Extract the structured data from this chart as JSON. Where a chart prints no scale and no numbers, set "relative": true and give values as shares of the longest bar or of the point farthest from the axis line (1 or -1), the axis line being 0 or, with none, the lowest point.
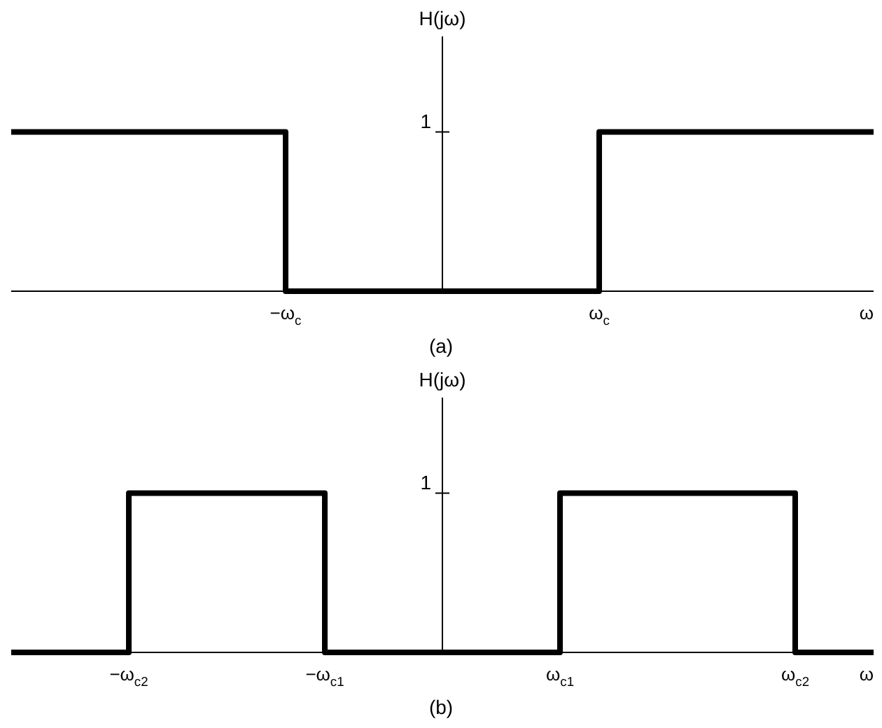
{
  "chart_data": [
    {
      "type": "step",
      "relative": true,
      "ylabel": "H(jω)",
      "xlabel": "ω",
      "annotations": [
        "1",
        "(a)"
      ],
      "categories": [
        null,
        null,
        null,
        null,
        null,
        null,
        null,
        "−ω$_{c}$",
        null,
        null,
        null,
        null,
        null,
        null,
        null,
        "ω$_{c}$",
        null,
        null,
        null,
        null,
        null,
        null,
        null
      ],
      "series": [
        {
          "color": "#000000",
          "values": [
            1,
            1,
            1,
            1,
            1,
            1,
            1,
            0,
            0,
            0,
            0,
            0,
            0,
            0,
            0,
            1,
            1,
            1,
            1,
            1,
            1,
            1,
            1
          ]
        }
      ]
    },
    {
      "type": "step",
      "relative": true,
      "ylabel": "H(jω)",
      "xlabel": "ω",
      "annotations": [
        "1",
        "(b)"
      ],
      "categories": [
        null,
        null,
        null,
        "−ω$_{c2}$",
        null,
        null,
        null,
        null,
        "−ω$_{c1}$",
        null,
        null,
        null,
        null,
        null,
        "ω$_{c1}$",
        null,
        null,
        null,
        null,
        null,
        "ω$_{c2}$",
        null,
        null
      ],
      "series": [
        {
          "color": "#000000",
          "values": [
            0,
            0,
            0,
            1,
            1,
            1,
            1,
            1,
            0,
            0,
            0,
            0,
            0,
            0,
            1,
            1,
            1,
            1,
            1,
            1,
            0,
            0,
            0
          ]
        }
      ]
    }
  ]
}
